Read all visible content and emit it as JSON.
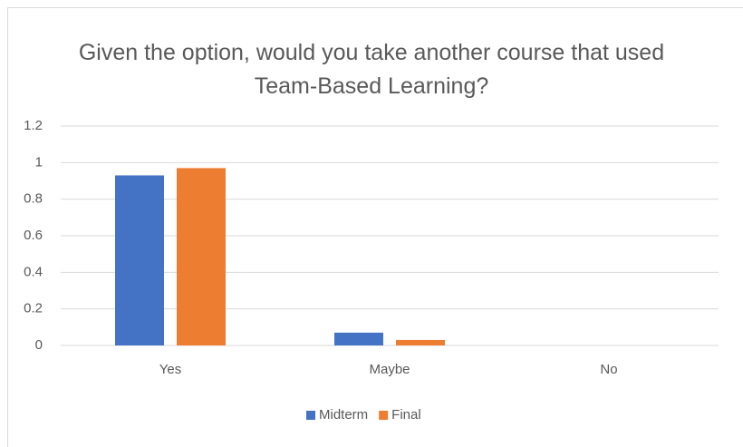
{
  "chart_data": {
    "type": "bar",
    "title": "Given the option, would you take another course that used Team-Based Learning?",
    "categories": [
      "Yes",
      "Maybe",
      "No"
    ],
    "series": [
      {
        "name": "Midterm",
        "color": "#4472c4",
        "values": [
          0.93,
          0.07,
          0
        ]
      },
      {
        "name": "Final",
        "color": "#ed7d31",
        "values": [
          0.97,
          0.03,
          0
        ]
      }
    ],
    "ylim": [
      0,
      1.2
    ],
    "yticks": [
      0,
      0.2,
      0.4,
      0.6,
      0.8,
      1,
      1.2
    ],
    "grid": true,
    "legend": "bottom"
  }
}
